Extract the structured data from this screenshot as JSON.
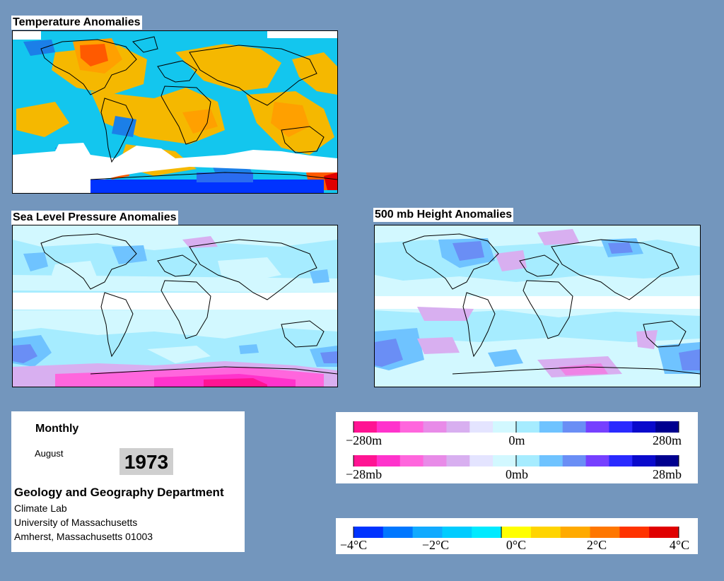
{
  "maps": {
    "temperature": {
      "title": "Temperature Anomalies"
    },
    "slp": {
      "title": "Sea Level Pressure Anomalies"
    },
    "height": {
      "title": "500 mb Height Anomalies"
    }
  },
  "info": {
    "mode": "Monthly",
    "month": "August",
    "year": "1973",
    "department": "Geology and Geography Department",
    "lab": "Climate Lab",
    "university": "University of Massachusetts",
    "address": "Amherst, Massachusetts 01003"
  },
  "legends": {
    "height": {
      "min_label": "−280m",
      "mid_label": "0m",
      "max_label": "280m"
    },
    "pressure": {
      "min_label": "−28mb",
      "mid_label": "0mb",
      "max_label": "28mb"
    },
    "temperature": {
      "labels": [
        "−4°C",
        "−2°C",
        "0°C",
        "2°C",
        "4°C"
      ]
    }
  },
  "colors": {
    "background": "#7396bd",
    "anomaly_scale": [
      "#ff1493",
      "#ff33cc",
      "#ff66dd",
      "#e88be8",
      "#d8aff0",
      "#e4e4ff",
      "#d2f8ff",
      "#a6ecff",
      "#6fc3ff",
      "#6a8ef5",
      "#7640ff",
      "#2a2aff",
      "#0a0acc",
      "#00008f"
    ],
    "temperature_scale": [
      "#0033ff",
      "#0077ff",
      "#11aaff",
      "#00ccff",
      "#00eaff",
      "#ffff00",
      "#ffd400",
      "#ffaa00",
      "#ff7700",
      "#ff3300",
      "#e00000"
    ]
  }
}
